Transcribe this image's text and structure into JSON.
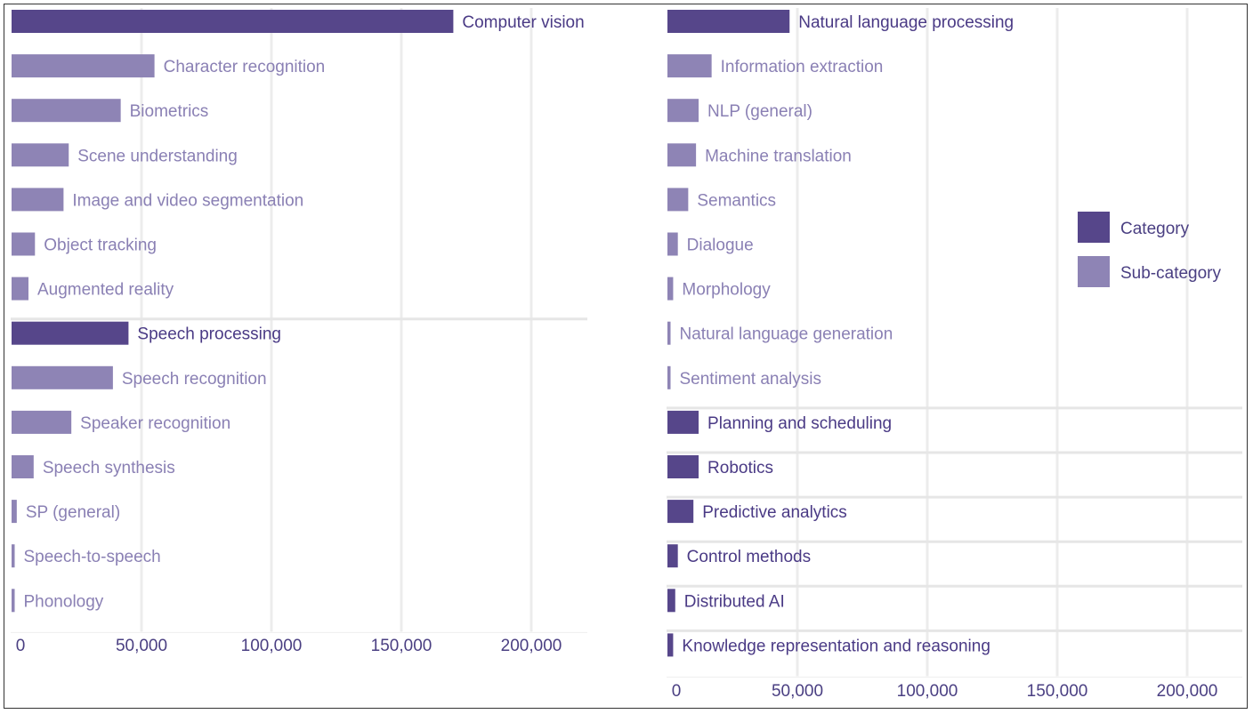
{
  "chart_data": [
    {
      "type": "bar",
      "orientation": "horizontal",
      "xlim": [
        0,
        220000
      ],
      "xticks": [
        "0",
        "50,000",
        "100,000",
        "150,000",
        "200,000"
      ],
      "xtick_values": [
        0,
        50000,
        100000,
        150000,
        200000
      ],
      "grid": true,
      "rows": [
        {
          "label": "Computer vision",
          "value": 170000,
          "kind": "category",
          "group": 0
        },
        {
          "label": "Character recognition",
          "value": 55000,
          "kind": "sub-category",
          "group": 0
        },
        {
          "label": "Biometrics",
          "value": 42000,
          "kind": "sub-category",
          "group": 0
        },
        {
          "label": "Scene understanding",
          "value": 22000,
          "kind": "sub-category",
          "group": 0
        },
        {
          "label": "Image and video segmentation",
          "value": 20000,
          "kind": "sub-category",
          "group": 0
        },
        {
          "label": "Object tracking",
          "value": 9000,
          "kind": "sub-category",
          "group": 0
        },
        {
          "label": "Augmented reality",
          "value": 6500,
          "kind": "sub-category",
          "group": 0
        },
        {
          "label": "Speech processing",
          "value": 45000,
          "kind": "category",
          "group": 1
        },
        {
          "label": "Speech recognition",
          "value": 39000,
          "kind": "sub-category",
          "group": 1
        },
        {
          "label": "Speaker recognition",
          "value": 23000,
          "kind": "sub-category",
          "group": 1
        },
        {
          "label": "Speech synthesis",
          "value": 8500,
          "kind": "sub-category",
          "group": 1
        },
        {
          "label": "SP (general)",
          "value": 2000,
          "kind": "sub-category",
          "group": 1
        },
        {
          "label": "Speech-to-speech",
          "value": 1200,
          "kind": "sub-category",
          "group": 1
        },
        {
          "label": "Phonology",
          "value": 1200,
          "kind": "sub-category",
          "group": 1
        }
      ]
    },
    {
      "type": "bar",
      "orientation": "horizontal",
      "xlim": [
        0,
        220000
      ],
      "xticks": [
        "0",
        "50,000",
        "100,000",
        "150,000",
        "200,000"
      ],
      "xtick_values": [
        0,
        50000,
        100000,
        150000,
        200000
      ],
      "grid": true,
      "rows": [
        {
          "label": "Natural language processing",
          "value": 47000,
          "kind": "category",
          "group": 0
        },
        {
          "label": "Information extraction",
          "value": 17000,
          "kind": "sub-category",
          "group": 0
        },
        {
          "label": "NLP (general)",
          "value": 12000,
          "kind": "sub-category",
          "group": 0
        },
        {
          "label": "Machine translation",
          "value": 11000,
          "kind": "sub-category",
          "group": 0
        },
        {
          "label": "Semantics",
          "value": 8000,
          "kind": "sub-category",
          "group": 0
        },
        {
          "label": "Dialogue",
          "value": 4000,
          "kind": "sub-category",
          "group": 0
        },
        {
          "label": "Morphology",
          "value": 2200,
          "kind": "sub-category",
          "group": 0
        },
        {
          "label": "Natural language generation",
          "value": 1200,
          "kind": "sub-category",
          "group": 0
        },
        {
          "label": "Sentiment analysis",
          "value": 1200,
          "kind": "sub-category",
          "group": 0
        },
        {
          "label": "Planning and scheduling",
          "value": 12000,
          "kind": "category",
          "group": 1
        },
        {
          "label": "Robotics",
          "value": 12000,
          "kind": "category",
          "group": 2
        },
        {
          "label": "Predictive analytics",
          "value": 10000,
          "kind": "category",
          "group": 3
        },
        {
          "label": "Control methods",
          "value": 4000,
          "kind": "category",
          "group": 4
        },
        {
          "label": "Distributed AI",
          "value": 3000,
          "kind": "category",
          "group": 5
        },
        {
          "label": "Knowledge representation and reasoning",
          "value": 2200,
          "kind": "category",
          "group": 6
        }
      ]
    }
  ],
  "legend": {
    "placement": "right",
    "items": [
      {
        "label": "Category",
        "color": "#56468a"
      },
      {
        "label": "Sub-category",
        "color": "#8e84b5"
      }
    ]
  },
  "colors": {
    "category_bar": "#56468a",
    "subcategory_bar": "#8e84b5",
    "category_text": "#4a3a85",
    "subcategory_text": "#8a80b4",
    "tick_text": "#4a3f82",
    "grid": "#ececec",
    "separator": "#e6e6e6"
  }
}
